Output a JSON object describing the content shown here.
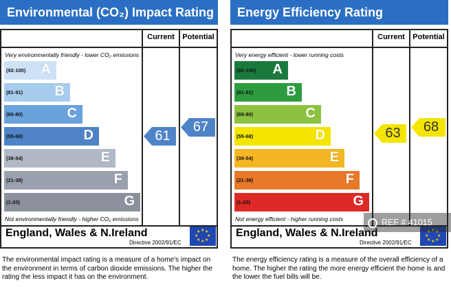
{
  "env": {
    "title": "Environmental (CO₂) Impact Rating",
    "current_label": "Current",
    "potential_label": "Potential",
    "note_top": "Very environmentally friendly - lower CO₂ emissions",
    "note_bottom": "Not environmentally friendly - higher CO₂ emissions",
    "bands": [
      {
        "range": "(92-100)",
        "letter": "A",
        "color": "#cde2f6"
      },
      {
        "range": "(81-91)",
        "letter": "B",
        "color": "#a8ccee"
      },
      {
        "range": "(69-80)",
        "letter": "C",
        "color": "#6aa2dc"
      },
      {
        "range": "(55-68)",
        "letter": "D",
        "color": "#4e84c7"
      },
      {
        "range": "(39-54)",
        "letter": "E",
        "color": "#b1b8c6"
      },
      {
        "range": "(21-38)",
        "letter": "F",
        "color": "#9aa0ae"
      },
      {
        "range": "(1-20)",
        "letter": "G",
        "color": "#8c919d"
      }
    ],
    "current_value": "61",
    "potential_value": "67",
    "arrow_color": "#4e84c7",
    "country": "England, Wales & N.Ireland",
    "directive": "Directive 2002/91/EC",
    "description": "The environmental impact rating is a measure of a home's impact on the environment in terms of carbon dioxide emissions. The higher the rating the less impact it has on the environment."
  },
  "eer": {
    "title": "Energy Efficiency Rating",
    "current_label": "Current",
    "potential_label": "Potential",
    "note_top": "Very energy efficient - lower running costs",
    "note_bottom": "Not energy efficient - higher running costs",
    "bands": [
      {
        "range": "(92-100)",
        "letter": "A",
        "color": "#1a7a3c"
      },
      {
        "range": "(81-91)",
        "letter": "B",
        "color": "#2c9c3f"
      },
      {
        "range": "(69-80)",
        "letter": "C",
        "color": "#8cc23f"
      },
      {
        "range": "(55-68)",
        "letter": "D",
        "color": "#f3e500"
      },
      {
        "range": "(39-54)",
        "letter": "E",
        "color": "#f5b624"
      },
      {
        "range": "(21-38)",
        "letter": "F",
        "color": "#e8782a"
      },
      {
        "range": "(1-20)",
        "letter": "G",
        "color": "#dd2a27"
      }
    ],
    "current_value": "63",
    "potential_value": "68",
    "arrow_color": "#f3e500",
    "country": "England, Wales & N.Ireland",
    "directive": "Directive 2002/91/EC",
    "description": "The energy efficiency rating is a measure of the overall efficiency of a home. The higher the rating the more energy efficient the home is and the lower the fuel bills will be."
  },
  "watermark": {
    "text": "REF # 41015",
    "icon": "camera-icon"
  }
}
